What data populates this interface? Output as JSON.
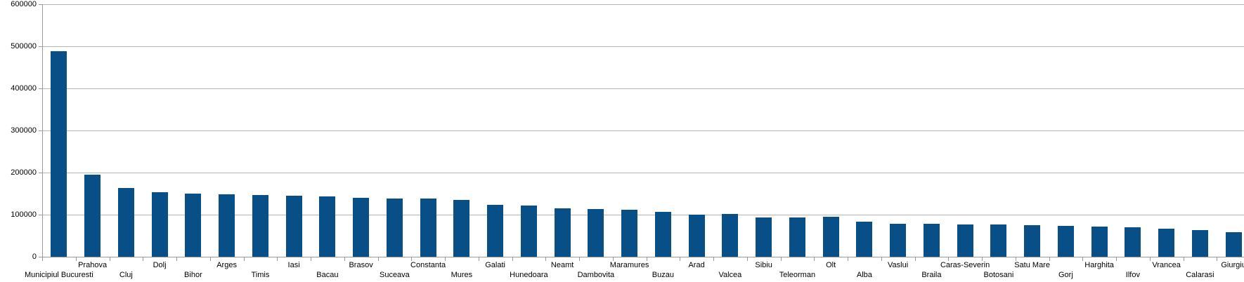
{
  "chart_data": {
    "type": "bar",
    "title": "",
    "xlabel": "",
    "ylabel": "",
    "legend_position": "none",
    "grid": "horizontal",
    "ylim": [
      0,
      600000
    ],
    "ytick_interval": 100000,
    "ytick_labels": [
      "0",
      "100000",
      "200000",
      "300000",
      "400000",
      "500000",
      "600000"
    ],
    "categories": [
      "Municipiul Bucuresti",
      "Prahova",
      "Cluj",
      "Dolj",
      "Bihor",
      "Arges",
      "Timis",
      "Iasi",
      "Bacau",
      "Brasov",
      "Suceava",
      "Constanta",
      "Mures",
      "Galati",
      "Hunedoara",
      "Neamt",
      "Dambovita",
      "Maramures",
      "Buzau",
      "Arad",
      "Valcea",
      "Sibiu",
      "Teleorman",
      "Olt",
      "Alba",
      "Vaslui",
      "Braila",
      "Caras-Severin",
      "Botosani",
      "Satu Mare",
      "Gorj",
      "Harghita",
      "Ilfov",
      "Vrancea",
      "Calarasi",
      "Giurgiu"
    ],
    "values": [
      487500,
      195000,
      163500,
      153500,
      150000,
      147500,
      147000,
      145000,
      143000,
      140500,
      138500,
      139000,
      135000,
      124000,
      122000,
      115500,
      114000,
      112000,
      107000,
      100500,
      101500,
      92500,
      93500,
      94500,
      83500,
      78500,
      79000,
      77000,
      76500,
      74500,
      73500,
      71000,
      69500,
      67000,
      63500,
      58000
    ],
    "colors": {
      "bar": "#084e87",
      "gridline": "#b5b5b5",
      "axis": "#999999",
      "label": "#000000",
      "background": "#ffffff"
    }
  }
}
